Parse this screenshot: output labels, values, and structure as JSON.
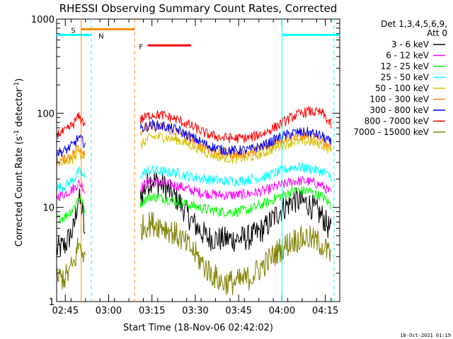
{
  "chart_data": {
    "type": "line",
    "title": "RHESSI Observing Summary Count Rates, Corrected",
    "xlabel": "Start Time (18-Nov-06 02:42:02)",
    "ylabel": "Corrected Count Rate (s-1 detector-1)",
    "ylabel_parts": {
      "base": "Corrected Count Rate (s",
      "exp1": "-1",
      "mid": " detector",
      "exp2": "-1",
      "end": ")"
    },
    "x_start_minutes": "02:42:02",
    "xlim_minutes": [
      0,
      98
    ],
    "ylim": [
      1,
      1000
    ],
    "y_scale": "log",
    "x_tick_labels": [
      "02:45",
      "03:00",
      "03:15",
      "03:30",
      "03:45",
      "04:00",
      "04:15"
    ],
    "x_tick_minutes": [
      3,
      18,
      33,
      48,
      63,
      78,
      93
    ],
    "y_tick_labels": [
      "1",
      "10",
      "100",
      "1000"
    ],
    "y_tick_values": [
      1,
      10,
      100,
      1000
    ],
    "legend": {
      "header1": "Det 1,3,4,5,6,9,",
      "header2": "Att 0",
      "entries": [
        {
          "label": "3 - 6 keV",
          "color": "#000000"
        },
        {
          "label": "6 - 12 keV",
          "color": "#ff00ff"
        },
        {
          "label": "12 - 25 keV",
          "color": "#00ff00"
        },
        {
          "label": "25 - 50 keV",
          "color": "#00ffff"
        },
        {
          "label": "50 - 100 keV",
          "color": "#d4c000"
        },
        {
          "label": "100 - 300 keV",
          "color": "#ff8800"
        },
        {
          "label": "300 - 800 keV",
          "color": "#0000ff"
        },
        {
          "label": "800 - 7000 keV",
          "color": "#ff0000"
        },
        {
          "label": "7000 - 15000 keV",
          "color": "#808000"
        }
      ]
    },
    "markers": {
      "saa_label": "S",
      "night_label": "N",
      "flare_label": "F",
      "saa_color": "#ff8800",
      "night_color": "#00ffff",
      "flare_color": "#ff0000"
    },
    "series": [
      {
        "name": "3 - 6 keV",
        "color": "#000000",
        "seg1": {
          "x": [
            0,
            3,
            6,
            7.5,
            9,
            10
          ],
          "y": [
            3.5,
            4,
            6,
            13,
            9,
            4
          ]
        },
        "seg2": {
          "x": [
            29,
            31,
            33,
            37,
            42,
            47,
            52,
            57,
            62,
            67,
            72,
            77,
            82,
            87,
            92,
            95
          ],
          "y": [
            13,
            17,
            20,
            17,
            12,
            7,
            4.8,
            4.6,
            4.6,
            4.8,
            6,
            9,
            12,
            11,
            8,
            5.5
          ]
        }
      },
      {
        "name": "6 - 12 keV",
        "color": "#ff00ff",
        "seg1": {
          "x": [
            0,
            3,
            6,
            7.5,
            9,
            10
          ],
          "y": [
            13,
            14,
            16,
            18,
            17,
            14
          ]
        },
        "seg2": {
          "x": [
            29,
            31,
            33,
            37,
            42,
            47,
            52,
            57,
            62,
            67,
            72,
            77,
            82,
            87,
            92,
            95
          ],
          "y": [
            16,
            18,
            19,
            18,
            17,
            15,
            14,
            13.5,
            13.5,
            14,
            15,
            17,
            19,
            19,
            17,
            14
          ]
        }
      },
      {
        "name": "12 - 25 keV",
        "color": "#00ff00",
        "seg1": {
          "x": [
            0,
            3,
            6,
            7.5,
            9,
            10
          ],
          "y": [
            7.5,
            8,
            10,
            13,
            11,
            9
          ]
        },
        "seg2": {
          "x": [
            29,
            31,
            33,
            37,
            42,
            47,
            52,
            57,
            62,
            67,
            72,
            77,
            82,
            87,
            92,
            95
          ],
          "y": [
            11,
            12.5,
            13,
            12.5,
            11.5,
            10.5,
            9.5,
            9,
            9,
            9.5,
            11,
            13,
            15,
            15,
            13,
            10.5
          ]
        }
      },
      {
        "name": "25 - 50 keV",
        "color": "#00ffff",
        "seg1": {
          "x": [
            0,
            3,
            6,
            7.5,
            9,
            10
          ],
          "y": [
            16,
            17,
            20,
            24,
            22,
            20
          ]
        },
        "seg2": {
          "x": [
            29,
            31,
            33,
            37,
            42,
            47,
            52,
            57,
            62,
            67,
            72,
            77,
            82,
            87,
            92,
            95
          ],
          "y": [
            22,
            24,
            25,
            24,
            23,
            21,
            20,
            19,
            19,
            20,
            21,
            24,
            27,
            26,
            24,
            21
          ]
        }
      },
      {
        "name": "50 - 100 keV",
        "color": "#d4c000",
        "seg1": {
          "x": [
            0,
            3,
            6,
            7.5,
            9,
            10
          ],
          "y": [
            28,
            30,
            33,
            40,
            36,
            34
          ]
        },
        "seg2": {
          "x": [
            29,
            31,
            33,
            37,
            42,
            47,
            52,
            57,
            62,
            67,
            72,
            77,
            82,
            87,
            92,
            95
          ],
          "y": [
            45,
            52,
            56,
            56,
            52,
            45,
            38,
            34,
            33,
            34,
            38,
            45,
            50,
            50,
            46,
            40
          ]
        }
      },
      {
        "name": "100 - 300 keV",
        "color": "#ff8800",
        "seg1": {
          "x": [
            0,
            3,
            6,
            7.5,
            9,
            10
          ],
          "y": [
            30,
            33,
            38,
            45,
            40,
            38
          ]
        },
        "seg2": {
          "x": [
            29,
            31,
            33,
            37,
            42,
            47,
            52,
            57,
            62,
            67,
            72,
            77,
            82,
            87,
            92,
            95
          ],
          "y": [
            65,
            70,
            72,
            70,
            63,
            52,
            43,
            38,
            37,
            38,
            43,
            52,
            58,
            58,
            52,
            45
          ]
        }
      },
      {
        "name": "300 - 800 keV",
        "color": "#0000ff",
        "seg1": {
          "x": [
            0,
            3,
            6,
            7.5,
            9,
            10
          ],
          "y": [
            38,
            40,
            47,
            55,
            50,
            48
          ]
        },
        "seg2": {
          "x": [
            29,
            31,
            33,
            37,
            42,
            47,
            52,
            57,
            62,
            67,
            72,
            77,
            82,
            87,
            92,
            95
          ],
          "y": [
            68,
            72,
            75,
            73,
            66,
            55,
            46,
            41,
            40,
            41,
            46,
            55,
            62,
            63,
            57,
            48
          ]
        }
      },
      {
        "name": "800 - 7000 keV",
        "color": "#ff0000",
        "seg1": {
          "x": [
            0,
            3,
            6,
            7.5,
            9,
            10
          ],
          "y": [
            60,
            64,
            78,
            92,
            82,
            75
          ]
        },
        "seg2": {
          "x": [
            29,
            31,
            33,
            37,
            42,
            47,
            52,
            57,
            62,
            67,
            72,
            77,
            82,
            87,
            92,
            95
          ],
          "y": [
            85,
            92,
            97,
            95,
            85,
            72,
            60,
            55,
            54,
            55,
            62,
            75,
            93,
            105,
            100,
            75
          ]
        }
      },
      {
        "name": "7000 - 15000 keV",
        "color": "#808000",
        "seg1": {
          "x": [
            0,
            3,
            6,
            7.5,
            9,
            10
          ],
          "y": [
            1.8,
            1.8,
            2.5,
            4,
            3.5,
            2.5
          ]
        },
        "seg2": {
          "x": [
            29,
            31,
            33,
            37,
            42,
            47,
            52,
            57,
            62,
            67,
            72,
            77,
            82,
            87,
            92,
            95
          ],
          "y": [
            6,
            6.5,
            6.8,
            6.3,
            5,
            3.5,
            2.2,
            1.6,
            1.6,
            1.8,
            2.5,
            3.5,
            4.5,
            4.8,
            4,
            3
          ]
        }
      }
    ]
  },
  "footer_timestamp": "18-Oct-2021 01:19"
}
